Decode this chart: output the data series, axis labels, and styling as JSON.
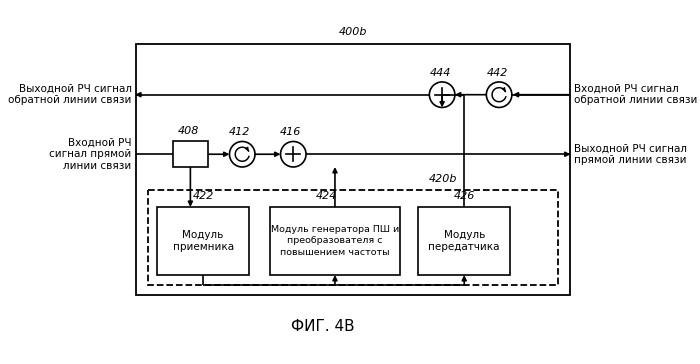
{
  "title": "ФИГ. 4В",
  "label_400b": "400b",
  "label_420b": "420b",
  "label_408": "408",
  "label_412": "412",
  "label_416": "416",
  "label_442": "442",
  "label_444": "444",
  "label_422": "422",
  "label_424": "424",
  "label_426": "426",
  "text_left_top": "Выходной РЧ сигнал\nобратной линии связи",
  "text_right_top": "Входной РЧ сигнал\nобратной линии связи",
  "text_left_mid": "Входной РЧ\nсигнал прямой\nлинии связи",
  "text_right_mid": "Выходной РЧ сигнал\nпрямой линии связи",
  "text_box422": "Модуль\nприемника",
  "text_box424": "Модуль генератора ПШ и\nпреобразователя с\nповышением частоты",
  "text_box426": "Модуль\nпередатчика",
  "bg_color": "#ffffff",
  "line_color": "#000000",
  "font_size_label": 7.5,
  "font_size_num": 8,
  "font_size_title": 11
}
